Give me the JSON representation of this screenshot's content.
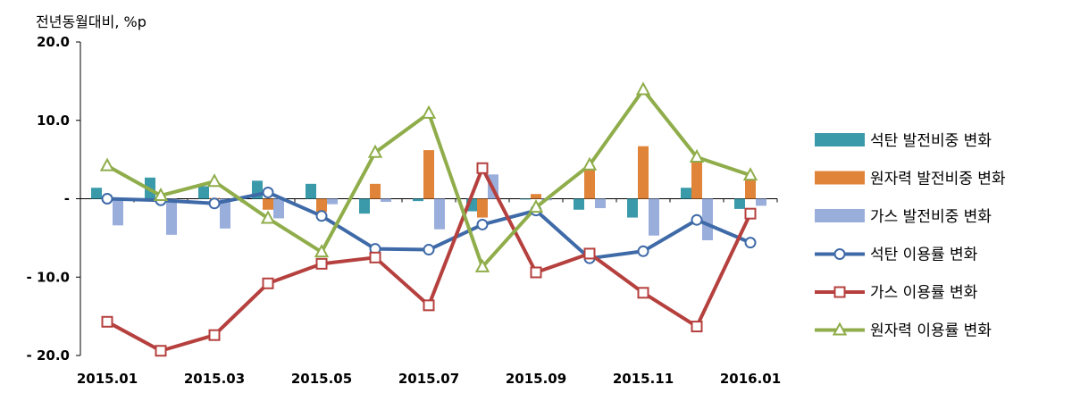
{
  "chart_data": {
    "type": "bar+line",
    "ylabel": "전년동월대비, %p",
    "ylim": [
      -20,
      20
    ],
    "y_ticks": [
      20,
      10,
      0,
      -10,
      -20
    ],
    "y_tick_labels": [
      "20.0",
      "10.0",
      "-",
      "- 10.0",
      "- 20.0"
    ],
    "categories": [
      "2015.01",
      "2015.02",
      "2015.03",
      "2015.04",
      "2015.05",
      "2015.06",
      "2015.07",
      "2015.08",
      "2015.09",
      "2015.10",
      "2015.11",
      "2015.12",
      "2016.01"
    ],
    "x_tick_labels": [
      "2015.01",
      "",
      "2015.03",
      "",
      "2015.05",
      "",
      "2015.07",
      "",
      "2015.09",
      "",
      "2015.11",
      "",
      "2016.01"
    ],
    "bar_series": [
      {
        "name": "석탄 발전비중 변화",
        "color": "#3a9aaa",
        "values": [
          1.4,
          2.7,
          1.6,
          2.3,
          1.9,
          -1.9,
          -0.3,
          -1.6,
          -0.1,
          -1.4,
          -2.4,
          1.4,
          -1.3
        ]
      },
      {
        "name": "원자력 발전비중 변화",
        "color": "#e0843a",
        "values": [
          0.1,
          -0.1,
          0.1,
          -1.4,
          -1.7,
          1.9,
          6.2,
          -2.4,
          0.6,
          3.8,
          6.7,
          4.8,
          2.7
        ]
      },
      {
        "name": "가스 발전비중 변화",
        "color": "#9aaedc",
        "values": [
          -3.4,
          -4.6,
          -3.8,
          -2.5,
          -0.7,
          -0.4,
          -3.9,
          3.1,
          -0.2,
          -1.2,
          -4.7,
          -5.3,
          -0.9
        ]
      }
    ],
    "line_series": [
      {
        "name": "석탄 이용률 변화",
        "color": "#3f6aa8",
        "marker": "circle",
        "values": [
          0.0,
          -0.2,
          -0.6,
          0.8,
          -2.2,
          -6.4,
          -6.5,
          -3.3,
          -1.5,
          -7.6,
          -6.7,
          -2.7,
          -5.6
        ]
      },
      {
        "name": "가스 이용률 변화",
        "color": "#b5403e",
        "marker": "square",
        "values": [
          -15.7,
          -19.4,
          -17.4,
          -10.8,
          -8.3,
          -7.5,
          -13.6,
          3.9,
          -9.4,
          -7.0,
          -12.0,
          -16.3,
          -1.9
        ]
      },
      {
        "name": "원자력 이용률 변화",
        "color": "#8fad4a",
        "marker": "triangle",
        "values": [
          4.2,
          0.4,
          2.2,
          -2.5,
          -6.8,
          5.9,
          10.9,
          -8.7,
          -1.1,
          4.3,
          13.9,
          5.3,
          3.0
        ]
      }
    ],
    "legend_position": "right"
  }
}
